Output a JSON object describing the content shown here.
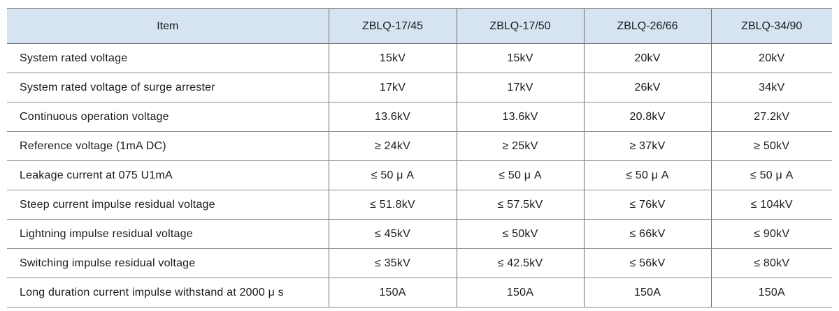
{
  "table": {
    "columns": [
      "Item",
      "ZBLQ-17/45",
      "ZBLQ-17/50",
      "ZBLQ-26/66",
      "ZBLQ-34/90"
    ],
    "rows": [
      {
        "item": "System rated voltage",
        "values": [
          "15kV",
          "15kV",
          "20kV",
          "20kV"
        ]
      },
      {
        "item": "System rated voltage of surge arrester",
        "values": [
          "17kV",
          "17kV",
          "26kV",
          "34kV"
        ]
      },
      {
        "item": "Continuous operation voltage",
        "values": [
          "13.6kV",
          "13.6kV",
          "20.8kV",
          "27.2kV"
        ]
      },
      {
        "item": "Reference voltage (1mA DC)",
        "values": [
          "≥ 24kV",
          "≥ 25kV",
          "≥ 37kV",
          "≥ 50kV"
        ]
      },
      {
        "item": "Leakage current at 075 U1mA",
        "values": [
          "≤ 50 μ A",
          "≤ 50 μ A",
          "≤ 50 μ A",
          "≤ 50 μ A"
        ]
      },
      {
        "item": "Steep current impulse residual voltage",
        "values": [
          "≤ 51.8kV",
          "≤ 57.5kV",
          "≤ 76kV",
          "≤ 104kV"
        ]
      },
      {
        "item": "Lightning impulse residual voltage",
        "values": [
          "≤ 45kV",
          "≤ 50kV",
          "≤ 66kV",
          "≤ 90kV"
        ]
      },
      {
        "item": "Switching impulse residual voltage",
        "values": [
          "≤ 35kV",
          "≤ 42.5kV",
          "≤ 56kV",
          "≤ 80kV"
        ]
      },
      {
        "item": "Long duration current impulse withstand at 2000 μ s",
        "values": [
          "150A",
          "150A",
          "150A",
          "150A"
        ]
      }
    ],
    "colors": {
      "header_bg": "#d6e4f2",
      "border_dark": "#6e6e6e",
      "border_light": "#8a8a8a",
      "text": "#1a1a1a"
    }
  }
}
